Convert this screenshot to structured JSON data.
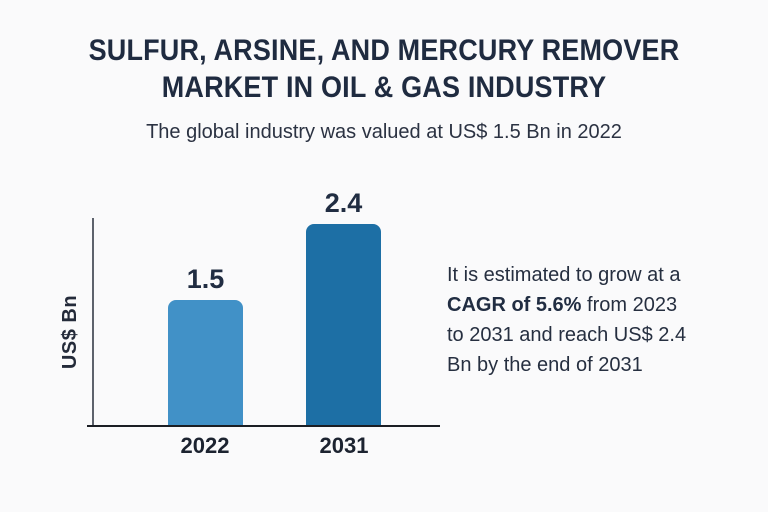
{
  "title": {
    "line1": "SULFUR, ARSINE, AND MERCURY REMOVER",
    "line2": "MARKET IN OIL & GAS INDUSTRY"
  },
  "subtitle": "The global industry was valued at US$ 1.5 Bn in 2022",
  "chart_data": {
    "type": "bar",
    "categories": [
      "2022",
      "2031"
    ],
    "values": [
      1.5,
      2.4
    ],
    "value_labels": [
      "1.5",
      "2.4"
    ],
    "title": "",
    "xlabel": "",
    "ylabel": "US$ Bn",
    "ylim": [
      0,
      2.5
    ],
    "grid": false,
    "legend": false,
    "bar_colors": [
      "#4191c7",
      "#1d6fa5"
    ]
  },
  "annotation": {
    "line1": "It is estimated to grow at a",
    "line2_bold": "CAGR of 5.6%",
    "line2_rest": " from 2023",
    "line3": "to 2031 and reach US$ 2.4",
    "line4": "Bn by the end of 2031"
  },
  "colors": {
    "background": "#fafafb",
    "title_text": "#1f2b40",
    "body_text": "#262f40",
    "bar_2022": "#4191c7",
    "bar_2031": "#1d6fa5",
    "y_axis_line": "#5d626c",
    "x_axis_line": "#1b1e24"
  }
}
